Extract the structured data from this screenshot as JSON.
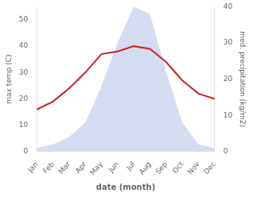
{
  "chart_data": {
    "type": "line",
    "xlabel": "date (month)",
    "ylabel": "max temp (C)",
    "y2label": "med. precipitation (kg/m2)",
    "categories": [
      "Jan",
      "Feb",
      "Mar",
      "Apr",
      "May",
      "Jun",
      "Jul",
      "Aug",
      "Sep",
      "Oct",
      "Nov",
      "Dec"
    ],
    "series": [
      {
        "type": "area",
        "color": "#b8c4e8",
        "axis": "y2",
        "values": [
          1,
          2,
          4,
          8,
          18,
          30,
          40,
          38,
          22,
          8,
          2,
          1
        ]
      },
      {
        "type": "line",
        "color": "#cc2222",
        "values": [
          16,
          19,
          24,
          30,
          37,
          38,
          40,
          39,
          34,
          27,
          22,
          20
        ]
      }
    ],
    "ylim": [
      0,
      55
    ],
    "yticks": [
      0,
      10,
      20,
      30,
      40,
      50
    ],
    "y2lim": [
      0,
      40
    ],
    "y2ticks": [
      0,
      10,
      20,
      30,
      40
    ],
    "grid": false
  }
}
